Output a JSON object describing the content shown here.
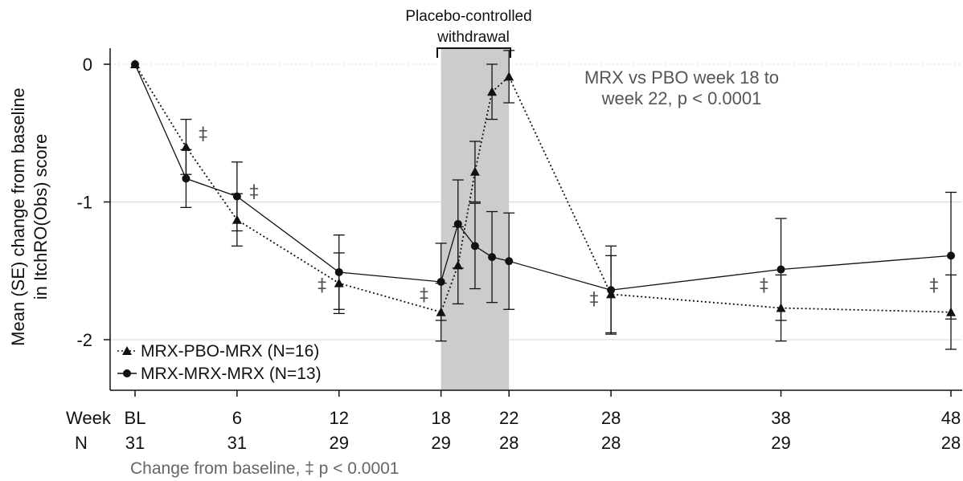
{
  "chart_data": {
    "type": "line",
    "ylabel_line1": "Mean (SE) change from baseline",
    "ylabel_line2": "in ItchRO(Obs) score",
    "ylim": [
      -2.4,
      0.15
    ],
    "yticks": [
      0,
      -1,
      -2
    ],
    "ytick_labels": [
      "0",
      "-1",
      "-2"
    ],
    "xlim": [
      -1,
      49
    ],
    "xticks": [
      0,
      6,
      12,
      18,
      22,
      28,
      38,
      48
    ],
    "xtick_labels": [
      "BL",
      "6",
      "12",
      "18",
      "22",
      "28",
      "38",
      "48"
    ],
    "week_label": "Week",
    "n_label": "N",
    "n_values": [
      "31",
      "31",
      "29",
      "29",
      "28",
      "28",
      "29",
      "28"
    ],
    "footnote": "Change from baseline, ‡ p < 0.0001",
    "shaded_region": {
      "x": [
        18,
        22
      ],
      "label_line1": "Placebo-controlled",
      "label_line2": "withdrawal"
    },
    "annotation_line1": "MRX vs PBO week 18 to",
    "annotation_line2": "week 22, p < 0.0001",
    "dagger_symbol": "‡",
    "dagger_positions": [
      {
        "x": 4,
        "y": -0.5
      },
      {
        "x": 7,
        "y": -0.92
      },
      {
        "x": 11,
        "y": -1.6
      },
      {
        "x": 17,
        "y": -1.67
      },
      {
        "x": 27,
        "y": -1.7
      },
      {
        "x": 37,
        "y": -1.6
      },
      {
        "x": 47,
        "y": -1.6
      }
    ],
    "grid": true,
    "legend_position": "bottom-left",
    "series": [
      {
        "name": "MRX-PBO-MRX (N=16)",
        "marker": "triangle",
        "line_style": "dotted",
        "x": [
          0,
          3,
          6,
          12,
          18,
          19,
          20,
          21,
          22,
          28,
          38,
          48
        ],
        "y": [
          0,
          -0.6,
          -1.13,
          -1.59,
          -1.8,
          -1.46,
          -0.78,
          -0.2,
          -0.09,
          -1.67,
          -1.77,
          -1.8
        ],
        "se": [
          0,
          0.2,
          0.19,
          0.22,
          0.21,
          0.28,
          0.22,
          0.2,
          0.19,
          0.28,
          0.24,
          0.27
        ]
      },
      {
        "name": "MRX-MRX-MRX (N=13)",
        "marker": "circle",
        "line_style": "solid",
        "x": [
          0,
          3,
          6,
          12,
          18,
          19,
          20,
          21,
          22,
          28,
          38,
          48
        ],
        "y": [
          0,
          -0.83,
          -0.96,
          -1.51,
          -1.58,
          -1.16,
          -1.32,
          -1.4,
          -1.43,
          -1.64,
          -1.49,
          -1.39
        ],
        "se": [
          0,
          0.21,
          0.25,
          0.27,
          0.28,
          0.32,
          0.31,
          0.33,
          0.35,
          0.32,
          0.37,
          0.46
        ]
      }
    ]
  }
}
